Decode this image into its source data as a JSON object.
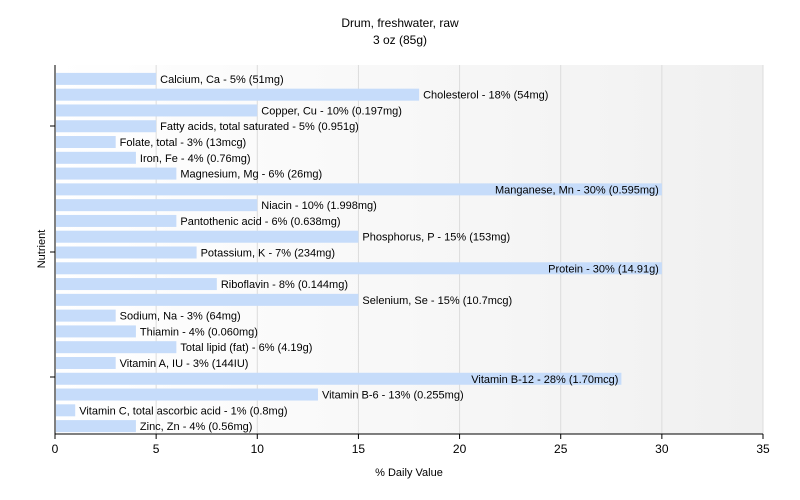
{
  "chart_data": {
    "type": "bar",
    "orientation": "horizontal",
    "title": "Drum, freshwater, raw",
    "subtitle": "3 oz (85g)",
    "xlabel": "% Daily Value",
    "ylabel": "Nutrient",
    "xlim": [
      0,
      35
    ],
    "xticks": [
      0,
      5,
      10,
      15,
      20,
      25,
      30,
      35
    ],
    "bar_color": "#c6dcfa",
    "grid": "vertical",
    "categories": [
      "Calcium, Ca",
      "Cholesterol",
      "Copper, Cu",
      "Fatty acids, total saturated",
      "Folate, total",
      "Iron, Fe",
      "Magnesium, Mg",
      "Manganese, Mn",
      "Niacin",
      "Pantothenic acid",
      "Phosphorus, P",
      "Potassium, K",
      "Protein",
      "Riboflavin",
      "Selenium, Se",
      "Sodium, Na",
      "Thiamin",
      "Total lipid (fat)",
      "Vitamin A, IU",
      "Vitamin B-12",
      "Vitamin B-6",
      "Vitamin C, total ascorbic acid",
      "Zinc, Zn"
    ],
    "values": [
      5,
      18,
      10,
      5,
      3,
      4,
      6,
      30,
      10,
      6,
      15,
      7,
      30,
      8,
      15,
      3,
      4,
      6,
      3,
      28,
      13,
      1,
      4
    ],
    "labels": [
      "Calcium, Ca - 5% (51mg)",
      "Cholesterol - 18% (54mg)",
      "Copper, Cu - 10% (0.197mg)",
      "Fatty acids, total saturated - 5% (0.951g)",
      "Folate, total - 3% (13mcg)",
      "Iron, Fe - 4% (0.76mg)",
      "Magnesium, Mg - 6% (26mg)",
      "Manganese, Mn - 30% (0.595mg)",
      "Niacin - 10% (1.998mg)",
      "Pantothenic acid - 6% (0.638mg)",
      "Phosphorus, P - 15% (153mg)",
      "Potassium, K - 7% (234mg)",
      "Protein - 30% (14.91g)",
      "Riboflavin - 8% (0.144mg)",
      "Selenium, Se - 15% (10.7mcg)",
      "Sodium, Na - 3% (64mg)",
      "Thiamin - 4% (0.060mg)",
      "Total lipid (fat) - 6% (4.19g)",
      "Vitamin A, IU - 3% (144IU)",
      "Vitamin B-12 - 28% (1.70mcg)",
      "Vitamin B-6 - 13% (0.255mg)",
      "Vitamin C, total ascorbic acid - 1% (0.8mg)",
      "Zinc, Zn - 4% (0.56mg)"
    ]
  }
}
